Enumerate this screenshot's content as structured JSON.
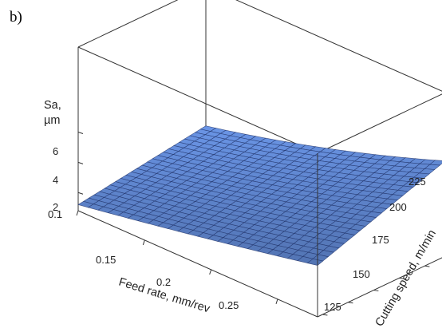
{
  "panel_label": "b)",
  "chart_data": {
    "type": "surface",
    "zlabel_line1": "Sa,",
    "zlabel_line2": "µm",
    "xlabel": "Feed rate, mm/rev",
    "ylabel": "Cutting speed, m/min",
    "x_ticks": [
      "0.1",
      "0.15",
      "0.2",
      "0.25"
    ],
    "y_ticks": [
      "125",
      "150",
      "175",
      "200",
      "225"
    ],
    "z_ticks": [
      "2",
      "4",
      "6"
    ],
    "xlim": [
      0.1,
      0.28
    ],
    "ylim": [
      120,
      245
    ],
    "zlim": [
      0.8,
      6.5
    ],
    "surface_color": "#6a95e6",
    "mesh_color": "#20336a",
    "grid": false,
    "corner_values": [
      {
        "feed": 0.1,
        "speed": 120,
        "Sa": 1.2
      },
      {
        "feed": 0.1,
        "speed": 245,
        "Sa": 2.4
      },
      {
        "feed": 0.28,
        "speed": 120,
        "Sa": 4.2
      },
      {
        "feed": 0.28,
        "speed": 245,
        "Sa": 6.2
      }
    ]
  }
}
